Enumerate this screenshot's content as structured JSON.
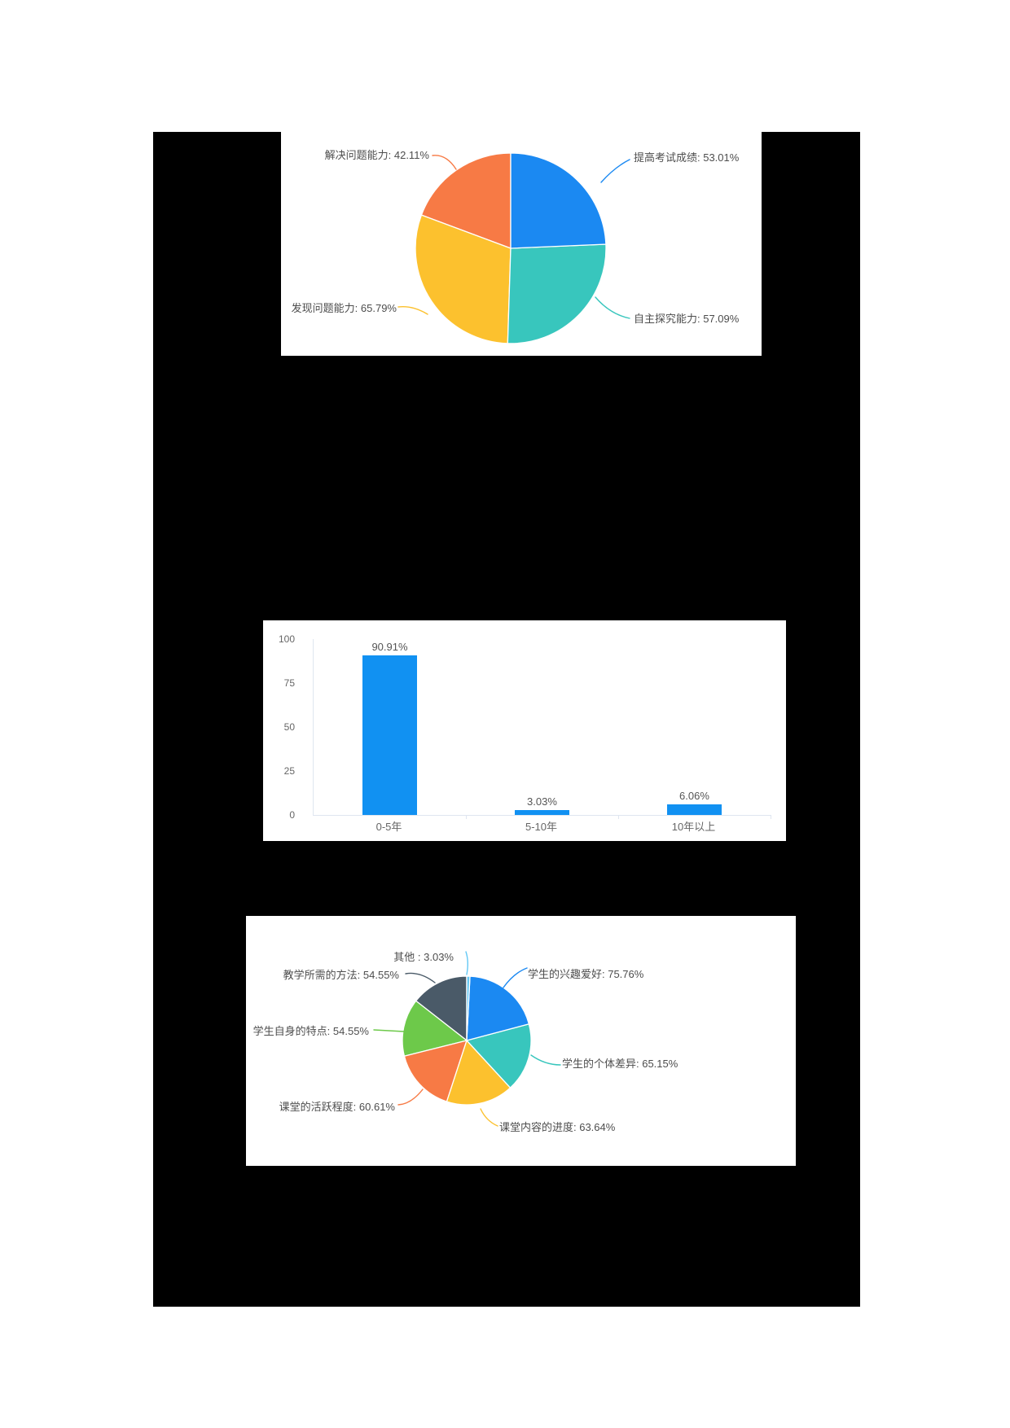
{
  "page": {
    "background_color": "#ffffff",
    "content_background": "#000000"
  },
  "chart_data": [
    {
      "type": "pie",
      "title": "",
      "labels": [
        "提高考试成绩",
        "自主探究能力",
        "发现问题能力",
        "解决问题能力"
      ],
      "values": [
        53.01,
        57.09,
        65.79,
        42.11
      ],
      "display_labels": [
        "提高考试成绩: 53.01%",
        "自主探究能力: 57.09%",
        "发现问题能力: 65.79%",
        "解决问题能力: 42.11%"
      ],
      "colors": [
        "#1b89f2",
        "#38c6bd",
        "#fcc12e",
        "#f77a45"
      ],
      "start_angle_deg": 0,
      "legend": "none",
      "label_style": "callout"
    },
    {
      "type": "bar",
      "title": "",
      "categories": [
        "0-5年",
        "5-10年",
        "10年以上"
      ],
      "values": [
        90.91,
        3.03,
        6.06
      ],
      "value_labels": [
        "90.91%",
        "3.03%",
        "6.06%"
      ],
      "ylim": [
        0,
        100
      ],
      "yticks": [
        0,
        25,
        50,
        75,
        100
      ],
      "ytick_labels_top_down": [
        "100",
        "75",
        "50",
        "25",
        "0"
      ],
      "bar_color": "#1191f2",
      "axis_color": "#dfe6f0",
      "grid": false,
      "legend": "none"
    },
    {
      "type": "pie",
      "title": "",
      "labels": [
        "其他",
        "学生的兴趣爱好",
        "学生的个体差异",
        "课堂内容的进度",
        "课堂的活跃程度",
        "学生自身的特点",
        "教学所需的方法"
      ],
      "values": [
        3.03,
        75.76,
        65.15,
        63.64,
        60.61,
        54.55,
        54.55
      ],
      "display_labels": [
        "其他 : 3.03%",
        "学生的兴趣爱好: 75.76%",
        "学生的个体差异: 65.15%",
        "课堂内容的进度: 63.64%",
        "课堂的活跃程度: 60.61%",
        "学生自身的特点: 54.55%",
        "教学所需的方法: 54.55%"
      ],
      "colors": [
        "#63c8f5",
        "#1b89f2",
        "#38c6bd",
        "#fcc12e",
        "#f77a45",
        "#6dc94a",
        "#4a5a68"
      ],
      "start_angle_deg": 0,
      "legend": "none",
      "label_style": "callout"
    }
  ]
}
